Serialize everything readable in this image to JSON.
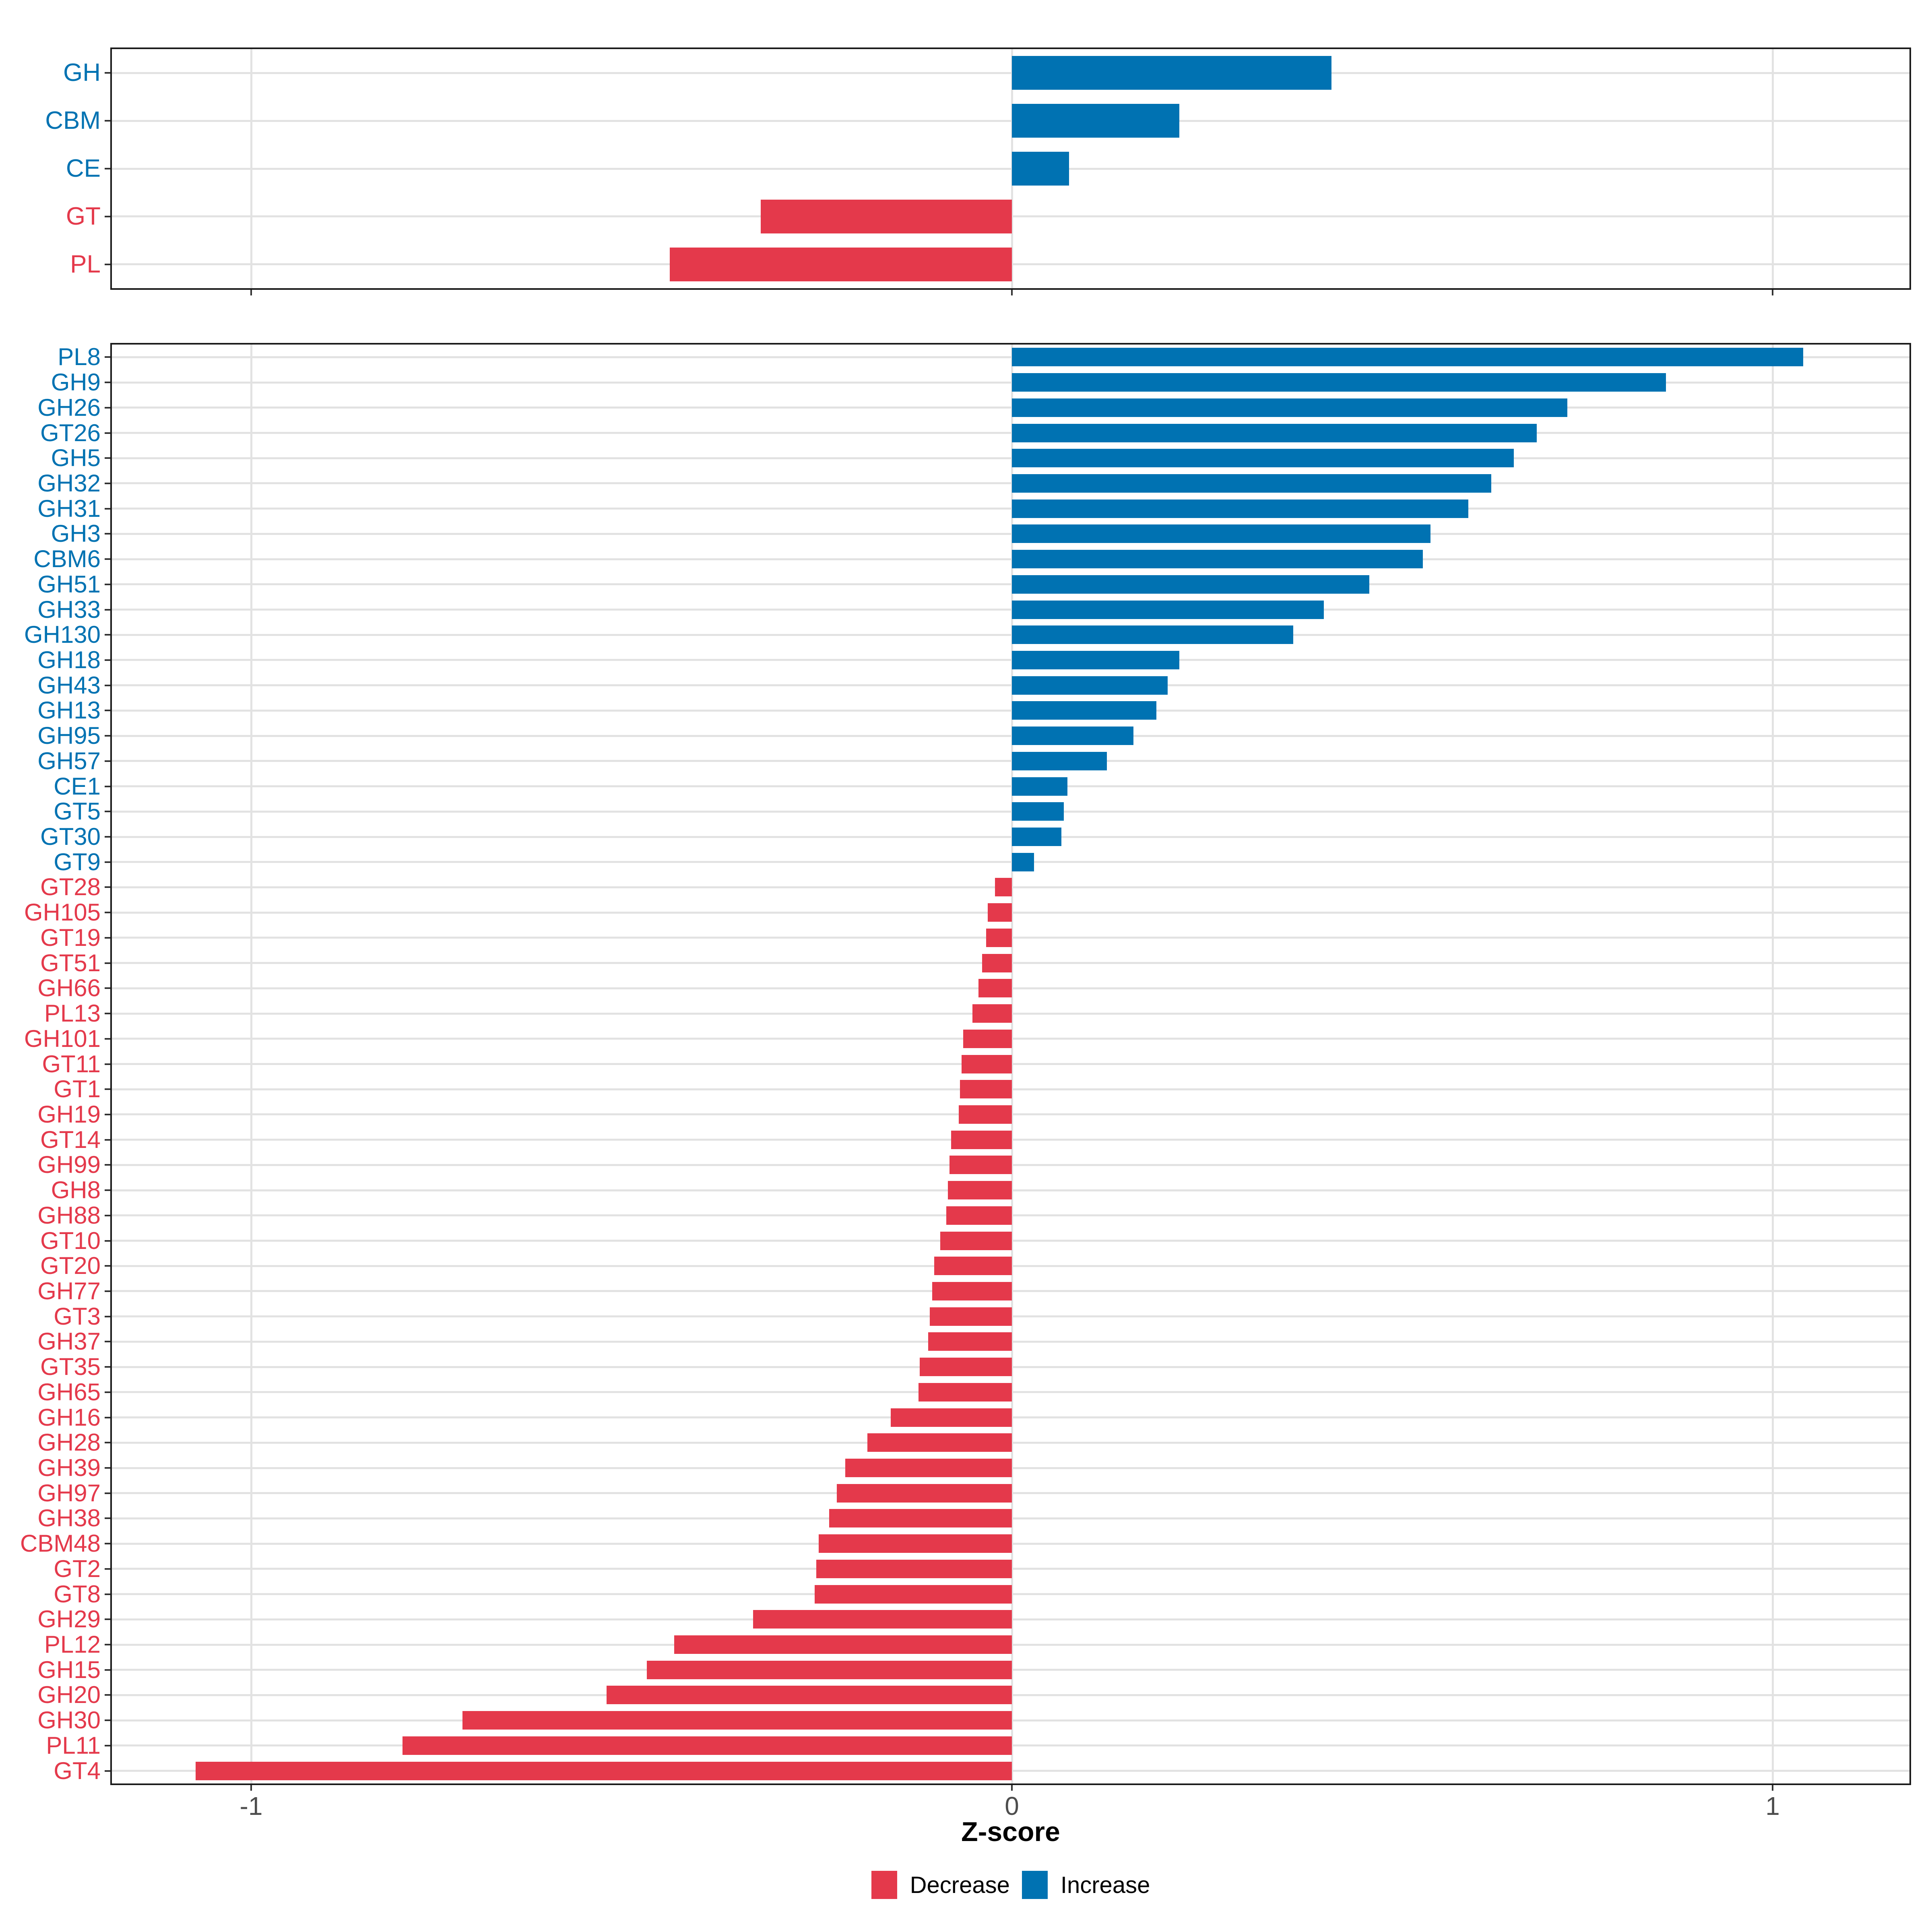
{
  "axis": {
    "label": "Z-score",
    "tick_labels": [
      "-1",
      "0",
      "1"
    ],
    "tick_values": [
      -1,
      0,
      1
    ]
  },
  "legend": {
    "items": [
      {
        "label": "Decrease",
        "direction": "decrease"
      },
      {
        "label": "Increase",
        "direction": "increase"
      }
    ]
  },
  "colors": {
    "increase": "#0072B2",
    "decrease": "#E4394B",
    "grid": "#E2E2E2",
    "panel_border": "#1A1A1A",
    "tick": "#333333",
    "tick_label": "#4D4D4D",
    "background": "#FFFFFF"
  },
  "chart_data": [
    {
      "type": "bar",
      "orientation": "horizontal",
      "panel": "top",
      "title": "",
      "xlabel": "Z-score",
      "xlim": [
        -1.18,
        1.18
      ],
      "grid": true,
      "legend_position": "bottom",
      "rows": [
        {
          "label": "GH",
          "value": 0.42,
          "direction": "increase"
        },
        {
          "label": "CBM",
          "value": 0.22,
          "direction": "increase"
        },
        {
          "label": "CE",
          "value": 0.075,
          "direction": "increase"
        },
        {
          "label": "GT",
          "value": -0.33,
          "direction": "decrease"
        },
        {
          "label": "PL",
          "value": -0.45,
          "direction": "decrease"
        }
      ]
    },
    {
      "type": "bar",
      "orientation": "horizontal",
      "panel": "bottom",
      "title": "",
      "xlabel": "Z-score",
      "xlim": [
        -1.18,
        1.18
      ],
      "grid": true,
      "legend_position": "bottom",
      "rows": [
        {
          "label": "PL8",
          "value": 1.04,
          "direction": "increase"
        },
        {
          "label": "GH9",
          "value": 0.86,
          "direction": "increase"
        },
        {
          "label": "GH26",
          "value": 0.73,
          "direction": "increase"
        },
        {
          "label": "GT26",
          "value": 0.69,
          "direction": "increase"
        },
        {
          "label": "GH5",
          "value": 0.66,
          "direction": "increase"
        },
        {
          "label": "GH32",
          "value": 0.63,
          "direction": "increase"
        },
        {
          "label": "GH31",
          "value": 0.6,
          "direction": "increase"
        },
        {
          "label": "GH3",
          "value": 0.55,
          "direction": "increase"
        },
        {
          "label": "CBM6",
          "value": 0.54,
          "direction": "increase"
        },
        {
          "label": "GH51",
          "value": 0.47,
          "direction": "increase"
        },
        {
          "label": "GH33",
          "value": 0.41,
          "direction": "increase"
        },
        {
          "label": "GH130",
          "value": 0.37,
          "direction": "increase"
        },
        {
          "label": "GH18",
          "value": 0.22,
          "direction": "increase"
        },
        {
          "label": "GH43",
          "value": 0.205,
          "direction": "increase"
        },
        {
          "label": "GH13",
          "value": 0.19,
          "direction": "increase"
        },
        {
          "label": "GH95",
          "value": 0.16,
          "direction": "increase"
        },
        {
          "label": "GH57",
          "value": 0.125,
          "direction": "increase"
        },
        {
          "label": "CE1",
          "value": 0.073,
          "direction": "increase"
        },
        {
          "label": "GT5",
          "value": 0.068,
          "direction": "increase"
        },
        {
          "label": "GT30",
          "value": 0.065,
          "direction": "increase"
        },
        {
          "label": "GT9",
          "value": 0.029,
          "direction": "increase"
        },
        {
          "label": "GT28",
          "value": -0.022,
          "direction": "decrease"
        },
        {
          "label": "GH105",
          "value": -0.032,
          "direction": "decrease"
        },
        {
          "label": "GT19",
          "value": -0.034,
          "direction": "decrease"
        },
        {
          "label": "GT51",
          "value": -0.039,
          "direction": "decrease"
        },
        {
          "label": "GH66",
          "value": -0.044,
          "direction": "decrease"
        },
        {
          "label": "PL13",
          "value": -0.052,
          "direction": "decrease"
        },
        {
          "label": "GH101",
          "value": -0.064,
          "direction": "decrease"
        },
        {
          "label": "GT11",
          "value": -0.066,
          "direction": "decrease"
        },
        {
          "label": "GT1",
          "value": -0.068,
          "direction": "decrease"
        },
        {
          "label": "GH19",
          "value": -0.07,
          "direction": "decrease"
        },
        {
          "label": "GT14",
          "value": -0.08,
          "direction": "decrease"
        },
        {
          "label": "GH99",
          "value": -0.082,
          "direction": "decrease"
        },
        {
          "label": "GH8",
          "value": -0.084,
          "direction": "decrease"
        },
        {
          "label": "GH88",
          "value": -0.086,
          "direction": "decrease"
        },
        {
          "label": "GT10",
          "value": -0.094,
          "direction": "decrease"
        },
        {
          "label": "GT20",
          "value": -0.102,
          "direction": "decrease"
        },
        {
          "label": "GH77",
          "value": -0.105,
          "direction": "decrease"
        },
        {
          "label": "GT3",
          "value": -0.108,
          "direction": "decrease"
        },
        {
          "label": "GH37",
          "value": -0.11,
          "direction": "decrease"
        },
        {
          "label": "GT35",
          "value": -0.121,
          "direction": "decrease"
        },
        {
          "label": "GH65",
          "value": -0.123,
          "direction": "decrease"
        },
        {
          "label": "GH16",
          "value": -0.159,
          "direction": "decrease"
        },
        {
          "label": "GH28",
          "value": -0.19,
          "direction": "decrease"
        },
        {
          "label": "GH39",
          "value": -0.219,
          "direction": "decrease"
        },
        {
          "label": "GH97",
          "value": -0.23,
          "direction": "decrease"
        },
        {
          "label": "GH38",
          "value": -0.24,
          "direction": "decrease"
        },
        {
          "label": "CBM48",
          "value": -0.254,
          "direction": "decrease"
        },
        {
          "label": "GT2",
          "value": -0.257,
          "direction": "decrease"
        },
        {
          "label": "GT8",
          "value": -0.259,
          "direction": "decrease"
        },
        {
          "label": "GH29",
          "value": -0.34,
          "direction": "decrease"
        },
        {
          "label": "PL12",
          "value": -0.444,
          "direction": "decrease"
        },
        {
          "label": "GH15",
          "value": -0.48,
          "direction": "decrease"
        },
        {
          "label": "GH20",
          "value": -0.533,
          "direction": "decrease"
        },
        {
          "label": "GH30",
          "value": -0.722,
          "direction": "decrease"
        },
        {
          "label": "PL11",
          "value": -0.801,
          "direction": "decrease"
        },
        {
          "label": "GT4",
          "value": -1.073,
          "direction": "decrease"
        }
      ]
    }
  ]
}
